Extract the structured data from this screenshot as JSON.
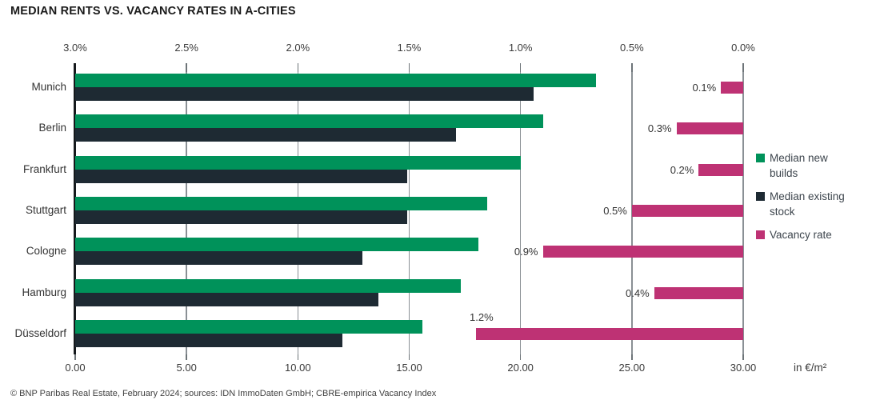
{
  "title": "MEDIAN RENTS VS. VACANCY RATES IN A-CITIES",
  "footer": "© BNP Paribas Real Estate, February 2024; sources: IDN ImmoDaten GmbH; CBRE-empirica Vacancy Index",
  "colors": {
    "new_builds": "#00925A",
    "existing_stock": "#1E2A33",
    "vacancy": "#BE3274",
    "gridline": "#8A9095",
    "axis": "#15191C"
  },
  "legend": {
    "items": [
      {
        "label": "Median new builds",
        "color": "#00925A"
      },
      {
        "label": "Median existing stock",
        "color": "#1E2A33"
      },
      {
        "label": "Vacancy rate",
        "color": "#BE3274"
      }
    ]
  },
  "chart_data": {
    "type": "bar",
    "orientation": "horizontal",
    "title": "MEDIAN RENTS VS. VACANCY RATES IN A-CITIES",
    "categories": [
      "Munich",
      "Berlin",
      "Frankfurt",
      "Stuttgart",
      "Cologne",
      "Hamburg",
      "Düsseldorf"
    ],
    "series": [
      {
        "name": "Median new builds",
        "axis": "bottom",
        "color": "#00925A",
        "values": [
          23.4,
          21.0,
          20.0,
          18.5,
          18.1,
          17.3,
          15.6
        ]
      },
      {
        "name": "Median existing stock",
        "axis": "bottom",
        "color": "#1E2A33",
        "values": [
          20.6,
          17.1,
          14.9,
          14.9,
          12.9,
          13.6,
          12.0
        ]
      },
      {
        "name": "Vacancy rate",
        "axis": "top",
        "color": "#BE3274",
        "values": [
          0.1,
          0.3,
          0.2,
          0.5,
          0.9,
          0.4,
          1.2
        ],
        "labels": [
          "0.1%",
          "0.3%",
          "0.2%",
          "0.5%",
          "0.9%",
          "0.4%",
          "1.2%"
        ],
        "label_placement": [
          "left",
          "left",
          "left",
          "left",
          "left",
          "left",
          "above"
        ]
      }
    ],
    "top_axis": {
      "min": 0,
      "max": 3,
      "reversed": true,
      "ticks": [
        "3.0%",
        "2.5%",
        "2.0%",
        "1.5%",
        "1.0%",
        "0.5%",
        "0.0%"
      ]
    },
    "bottom_axis": {
      "min": 0,
      "max": 30,
      "label": "in €/m²",
      "ticks": [
        "0.00",
        "5.00",
        "10.00",
        "15.00",
        "20.00",
        "25.00",
        "30.00"
      ]
    },
    "grid": true,
    "legend_position": "right"
  }
}
